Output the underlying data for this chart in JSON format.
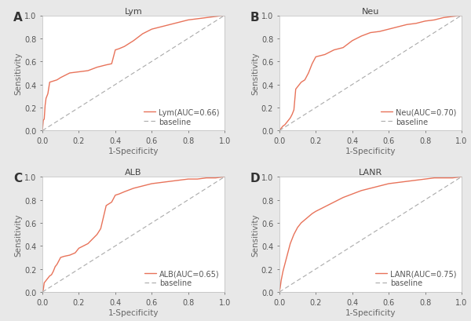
{
  "panels": [
    {
      "label": "A",
      "title": "Lym",
      "legend_text": "Lym(AUC=0.66)",
      "roc_fpr": [
        0.0,
        0.005,
        0.01,
        0.015,
        0.02,
        0.03,
        0.04,
        0.06,
        0.08,
        0.1,
        0.15,
        0.2,
        0.25,
        0.3,
        0.35,
        0.38,
        0.4,
        0.42,
        0.45,
        0.5,
        0.55,
        0.6,
        0.65,
        0.7,
        0.75,
        0.8,
        0.85,
        0.9,
        0.95,
        1.0
      ],
      "roc_tpr": [
        0.0,
        0.09,
        0.1,
        0.22,
        0.28,
        0.32,
        0.42,
        0.43,
        0.44,
        0.46,
        0.5,
        0.51,
        0.52,
        0.55,
        0.57,
        0.58,
        0.7,
        0.71,
        0.73,
        0.78,
        0.84,
        0.88,
        0.9,
        0.92,
        0.94,
        0.96,
        0.97,
        0.98,
        0.99,
        1.0
      ]
    },
    {
      "label": "B",
      "title": "Neu",
      "legend_text": "Neu(AUC=0.70)",
      "roc_fpr": [
        0.0,
        0.005,
        0.01,
        0.02,
        0.03,
        0.04,
        0.05,
        0.06,
        0.07,
        0.08,
        0.09,
        0.1,
        0.12,
        0.14,
        0.16,
        0.18,
        0.2,
        0.25,
        0.3,
        0.35,
        0.4,
        0.45,
        0.5,
        0.55,
        0.6,
        0.65,
        0.7,
        0.75,
        0.8,
        0.85,
        0.9,
        0.95,
        1.0
      ],
      "roc_tpr": [
        0.0,
        0.01,
        0.02,
        0.04,
        0.05,
        0.07,
        0.09,
        0.11,
        0.14,
        0.18,
        0.36,
        0.38,
        0.42,
        0.44,
        0.5,
        0.58,
        0.64,
        0.66,
        0.7,
        0.72,
        0.78,
        0.82,
        0.85,
        0.86,
        0.88,
        0.9,
        0.92,
        0.93,
        0.95,
        0.96,
        0.98,
        0.99,
        1.0
      ]
    },
    {
      "label": "C",
      "title": "ALB",
      "legend_text": "ALB(AUC=0.65)",
      "roc_fpr": [
        0.0,
        0.005,
        0.01,
        0.02,
        0.03,
        0.04,
        0.05,
        0.06,
        0.07,
        0.08,
        0.09,
        0.1,
        0.12,
        0.15,
        0.18,
        0.2,
        0.25,
        0.3,
        0.32,
        0.35,
        0.38,
        0.4,
        0.42,
        0.45,
        0.5,
        0.55,
        0.6,
        0.65,
        0.7,
        0.75,
        0.8,
        0.85,
        0.9,
        0.95,
        1.0
      ],
      "roc_tpr": [
        0.0,
        0.02,
        0.08,
        0.1,
        0.12,
        0.14,
        0.15,
        0.18,
        0.22,
        0.24,
        0.27,
        0.3,
        0.31,
        0.32,
        0.34,
        0.38,
        0.42,
        0.5,
        0.55,
        0.75,
        0.78,
        0.84,
        0.85,
        0.87,
        0.9,
        0.92,
        0.94,
        0.95,
        0.96,
        0.97,
        0.98,
        0.98,
        0.99,
        0.99,
        1.0
      ]
    },
    {
      "label": "D",
      "title": "LANR",
      "legend_text": "LANR(AUC=0.75)",
      "roc_fpr": [
        0.0,
        0.005,
        0.01,
        0.02,
        0.03,
        0.04,
        0.05,
        0.06,
        0.08,
        0.1,
        0.12,
        0.15,
        0.18,
        0.2,
        0.25,
        0.3,
        0.35,
        0.4,
        0.45,
        0.5,
        0.55,
        0.6,
        0.65,
        0.7,
        0.75,
        0.8,
        0.85,
        0.9,
        0.95,
        1.0
      ],
      "roc_tpr": [
        0.0,
        0.04,
        0.1,
        0.18,
        0.24,
        0.3,
        0.36,
        0.42,
        0.5,
        0.56,
        0.6,
        0.64,
        0.68,
        0.7,
        0.74,
        0.78,
        0.82,
        0.85,
        0.88,
        0.9,
        0.92,
        0.94,
        0.95,
        0.96,
        0.97,
        0.98,
        0.99,
        0.99,
        0.99,
        1.0
      ]
    }
  ],
  "roc_color": "#E8735A",
  "baseline_color": "#aaaaaa",
  "outer_bg": "#e8e8e8",
  "panel_bg": "#ffffff",
  "label_fontsize": 11,
  "title_fontsize": 8,
  "tick_fontsize": 7,
  "axis_label_fontsize": 7.5,
  "legend_fontsize": 7
}
